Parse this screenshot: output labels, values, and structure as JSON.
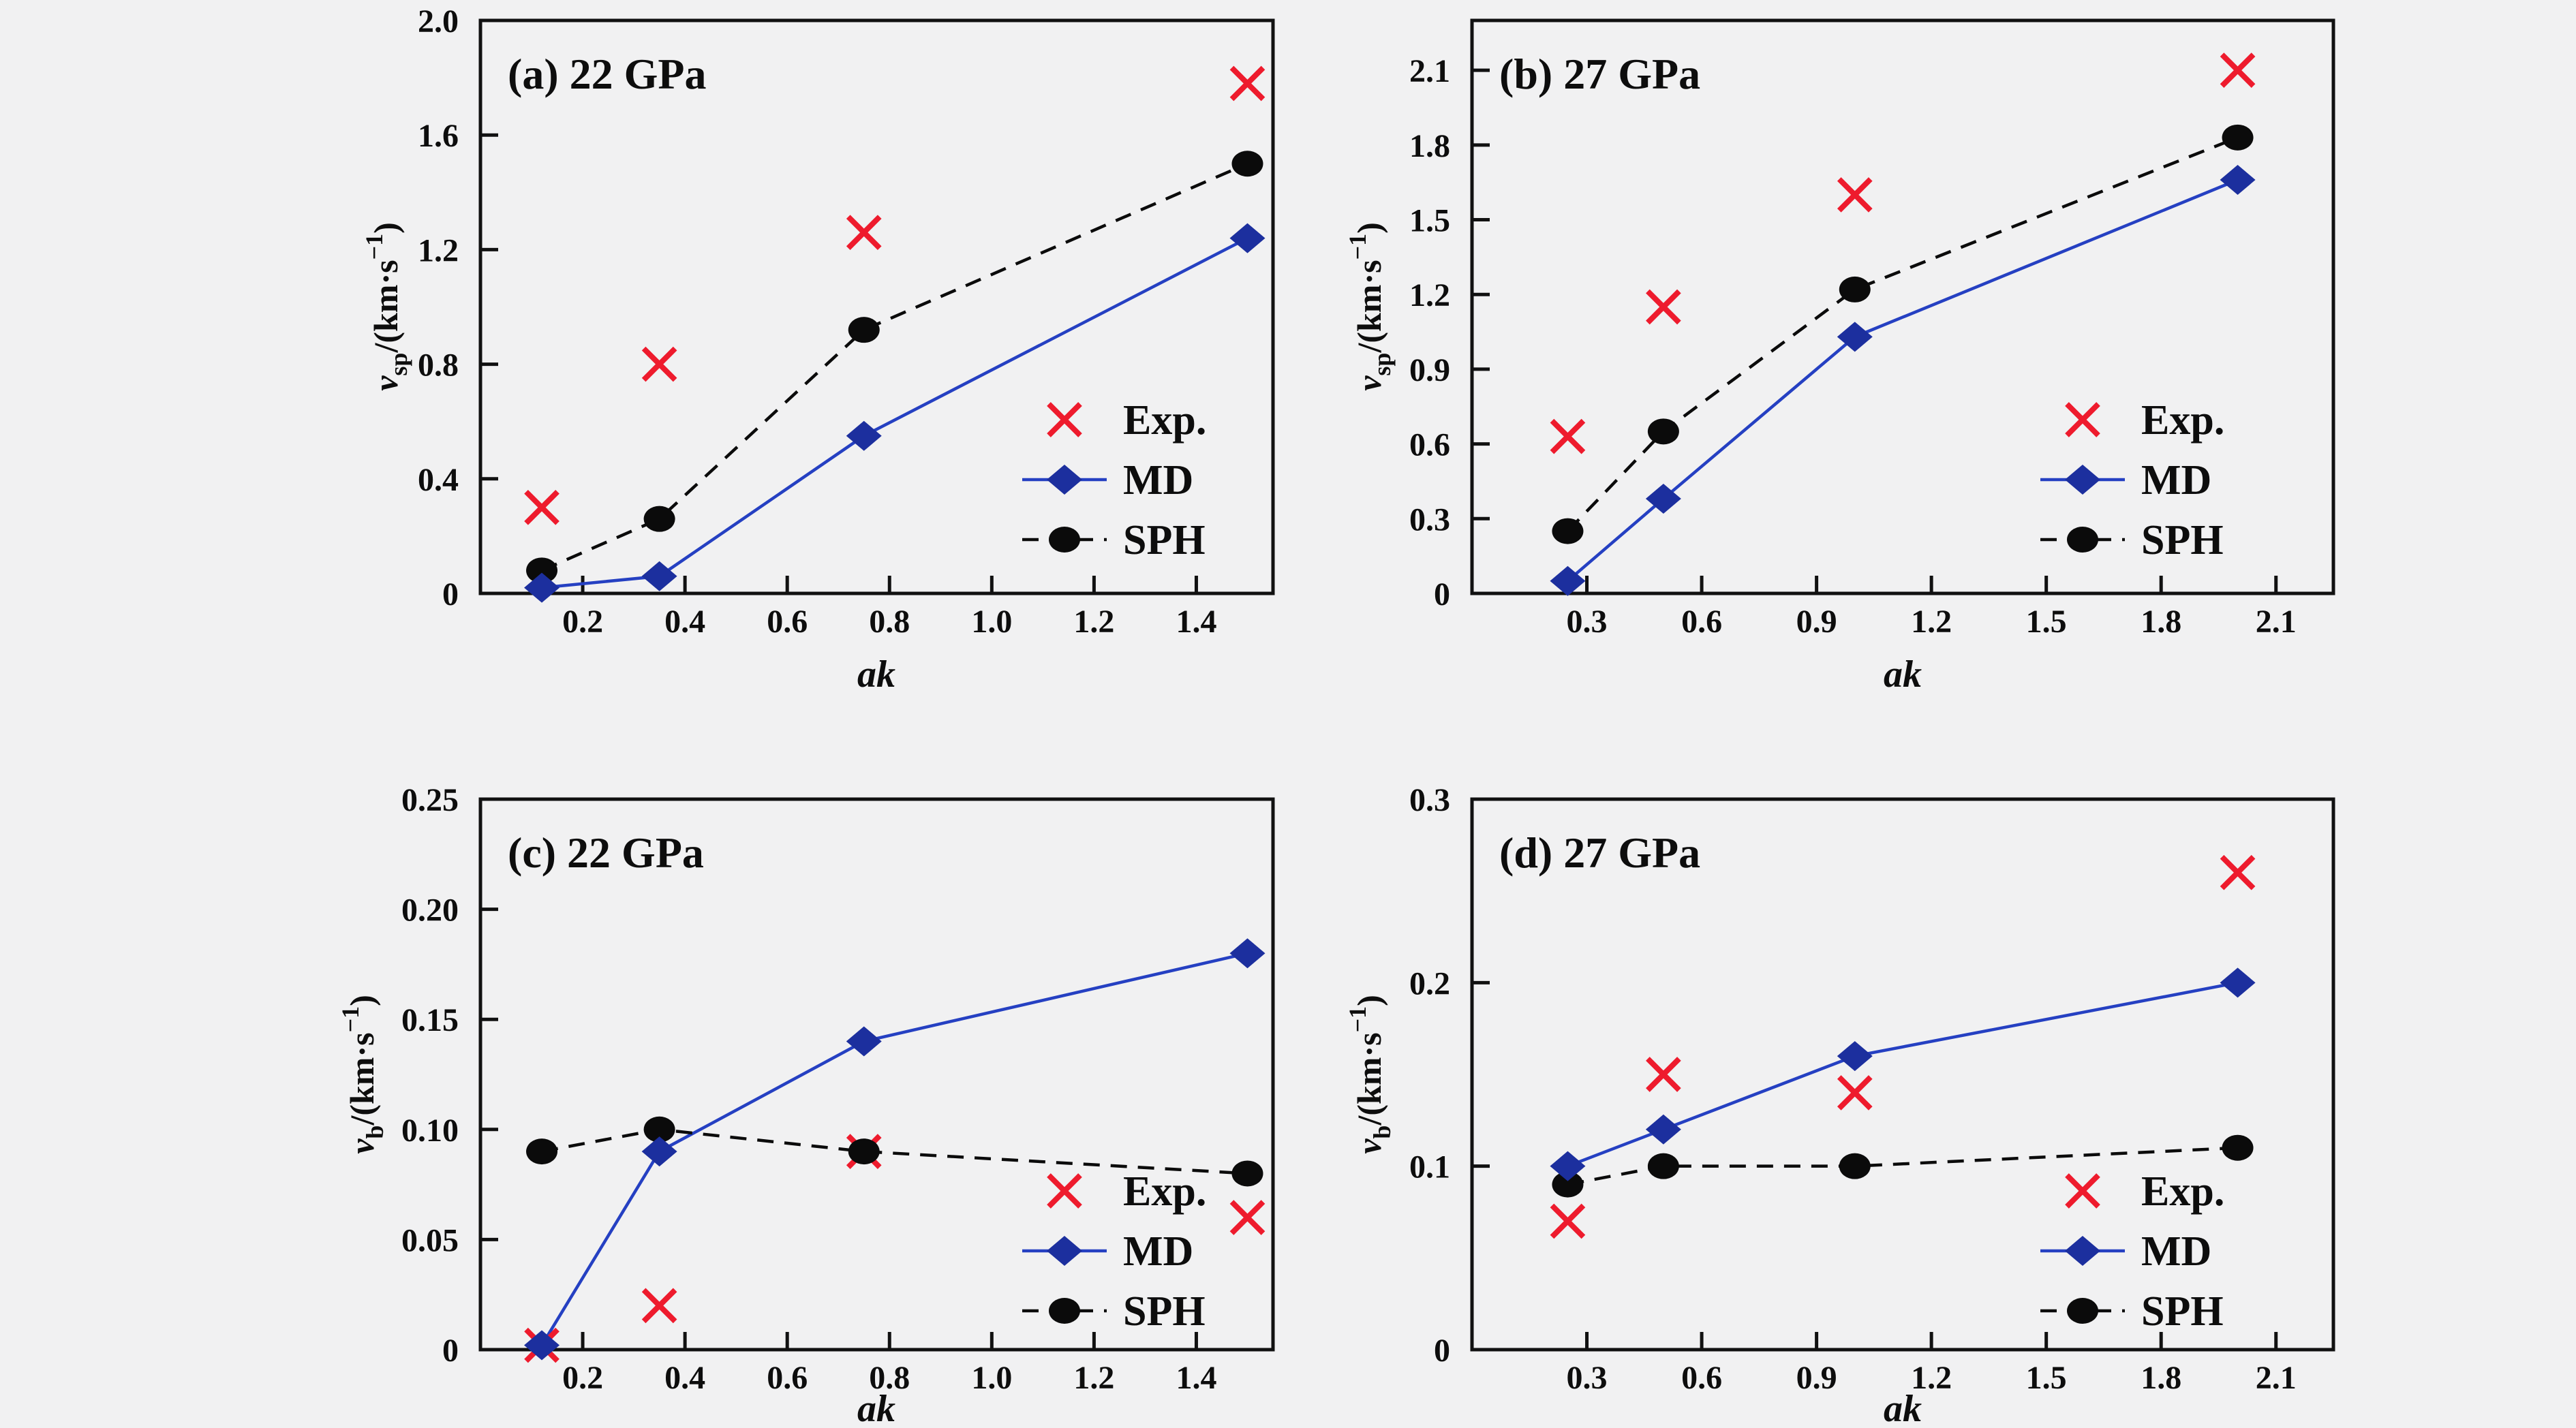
{
  "figure": {
    "background": "#f1f1f2"
  },
  "colors": {
    "axis": "#111111",
    "text": "#0d0d0d",
    "exp": "#ee1b2d",
    "md_marker": "#1c2f9e",
    "md_line": "#2540c2",
    "sph": "#0b0b0b"
  },
  "legend_labels": [
    "Exp.",
    "MD",
    "SPH"
  ],
  "chart_data": [
    {
      "id": "a",
      "type": "line",
      "title": "(a) 22 GPa",
      "xlabel": "ak",
      "ylabel": {
        "var": "v",
        "sub": "sp",
        "mid": "/(km·s",
        "sup": "−1",
        "end": ")"
      },
      "xlim": [
        0,
        1.55
      ],
      "ylim": [
        0,
        2.0
      ],
      "xticks": [
        {
          "v": 0.2,
          "t": "0.2"
        },
        {
          "v": 0.4,
          "t": "0.4"
        },
        {
          "v": 0.6,
          "t": "0.6"
        },
        {
          "v": 0.8,
          "t": "0.8"
        },
        {
          "v": 1.0,
          "t": "1.0"
        },
        {
          "v": 1.2,
          "t": "1.2"
        },
        {
          "v": 1.4,
          "t": "1.4"
        }
      ],
      "yticks": [
        {
          "v": 0,
          "t": "0"
        },
        {
          "v": 0.4,
          "t": "0.4"
        },
        {
          "v": 0.8,
          "t": "0.8"
        },
        {
          "v": 1.2,
          "t": "1.2"
        },
        {
          "v": 1.6,
          "t": "1.6"
        },
        {
          "v": 2.0,
          "t": "2.0"
        }
      ],
      "x": [
        0.12,
        0.35,
        0.75,
        1.5
      ],
      "series": [
        {
          "name": "Exp.",
          "key": "exp",
          "values": [
            0.3,
            0.8,
            1.26,
            1.78
          ]
        },
        {
          "name": "MD",
          "key": "md",
          "values": [
            0.02,
            0.06,
            0.55,
            1.24
          ]
        },
        {
          "name": "SPH",
          "key": "sph",
          "values": [
            0.08,
            0.26,
            0.92,
            1.5
          ]
        }
      ],
      "legend_position": "right-middle",
      "grid": false
    },
    {
      "id": "b",
      "type": "line",
      "title": "(b) 27 GPa",
      "xlabel": "ak",
      "ylabel": {
        "var": "v",
        "sub": "sp",
        "mid": "/(km·s",
        "sup": "−1",
        "end": ")"
      },
      "xlim": [
        0,
        2.25
      ],
      "ylim": [
        0,
        2.3
      ],
      "xticks": [
        {
          "v": 0.3,
          "t": "0.3"
        },
        {
          "v": 0.6,
          "t": "0.6"
        },
        {
          "v": 0.9,
          "t": "0.9"
        },
        {
          "v": 1.2,
          "t": "1.2"
        },
        {
          "v": 1.5,
          "t": "1.5"
        },
        {
          "v": 1.8,
          "t": "1.8"
        },
        {
          "v": 2.1,
          "t": "2.1"
        }
      ],
      "yticks": [
        {
          "v": 0,
          "t": "0"
        },
        {
          "v": 0.3,
          "t": "0.3"
        },
        {
          "v": 0.6,
          "t": "0.6"
        },
        {
          "v": 0.9,
          "t": "0.9"
        },
        {
          "v": 1.2,
          "t": "1.2"
        },
        {
          "v": 1.5,
          "t": "1.5"
        },
        {
          "v": 1.8,
          "t": "1.8"
        },
        {
          "v": 2.1,
          "t": "2.1"
        }
      ],
      "x": [
        0.25,
        0.5,
        1.0,
        2.0
      ],
      "series": [
        {
          "name": "Exp.",
          "key": "exp",
          "values": [
            0.63,
            1.15,
            1.6,
            2.1
          ]
        },
        {
          "name": "MD",
          "key": "md",
          "values": [
            0.05,
            0.38,
            1.03,
            1.66
          ]
        },
        {
          "name": "SPH",
          "key": "sph",
          "values": [
            0.25,
            0.65,
            1.22,
            1.83
          ]
        }
      ],
      "legend_position": "right-middle",
      "grid": false
    },
    {
      "id": "c",
      "type": "line",
      "title": "(c) 22 GPa",
      "xlabel": "ak",
      "ylabel": {
        "var": "v",
        "sub": "b",
        "mid": "/(km·s",
        "sup": "−1",
        "end": ")"
      },
      "xlim": [
        0,
        1.55
      ],
      "ylim": [
        0,
        0.25
      ],
      "xticks": [
        {
          "v": 0.2,
          "t": "0.2"
        },
        {
          "v": 0.4,
          "t": "0.4"
        },
        {
          "v": 0.6,
          "t": "0.6"
        },
        {
          "v": 0.8,
          "t": "0.8"
        },
        {
          "v": 1.0,
          "t": "1.0"
        },
        {
          "v": 1.2,
          "t": "1.2"
        },
        {
          "v": 1.4,
          "t": "1.4"
        }
      ],
      "yticks": [
        {
          "v": 0,
          "t": "0"
        },
        {
          "v": 0.05,
          "t": "0.05"
        },
        {
          "v": 0.1,
          "t": "0.10"
        },
        {
          "v": 0.15,
          "t": "0.15"
        },
        {
          "v": 0.2,
          "t": "0.20"
        },
        {
          "v": 0.25,
          "t": "0.25"
        }
      ],
      "x": [
        0.12,
        0.35,
        0.75,
        1.5
      ],
      "series": [
        {
          "name": "Exp.",
          "key": "exp",
          "values": [
            0.002,
            0.02,
            0.09,
            0.06
          ]
        },
        {
          "name": "MD",
          "key": "md",
          "values": [
            0.002,
            0.09,
            0.14,
            0.18
          ]
        },
        {
          "name": "SPH",
          "key": "sph",
          "values": [
            0.09,
            0.1,
            0.09,
            0.08
          ]
        }
      ],
      "legend_position": "right-lower",
      "grid": false
    },
    {
      "id": "d",
      "type": "line",
      "title": "(d) 27 GPa",
      "xlabel": "ak",
      "ylabel": {
        "var": "v",
        "sub": "b",
        "mid": "/(km·s",
        "sup": "−1",
        "end": ")"
      },
      "xlim": [
        0,
        2.25
      ],
      "ylim": [
        0,
        0.3
      ],
      "xticks": [
        {
          "v": 0.3,
          "t": "0.3"
        },
        {
          "v": 0.6,
          "t": "0.6"
        },
        {
          "v": 0.9,
          "t": "0.9"
        },
        {
          "v": 1.2,
          "t": "1.2"
        },
        {
          "v": 1.5,
          "t": "1.5"
        },
        {
          "v": 1.8,
          "t": "1.8"
        },
        {
          "v": 2.1,
          "t": "2.1"
        }
      ],
      "yticks": [
        {
          "v": 0,
          "t": "0"
        },
        {
          "v": 0.1,
          "t": "0.1"
        },
        {
          "v": 0.2,
          "t": "0.2"
        },
        {
          "v": 0.3,
          "t": "0.3"
        }
      ],
      "x": [
        0.25,
        0.5,
        1.0,
        2.0
      ],
      "series": [
        {
          "name": "Exp.",
          "key": "exp",
          "values": [
            0.07,
            0.15,
            0.14,
            0.26
          ]
        },
        {
          "name": "MD",
          "key": "md",
          "values": [
            0.1,
            0.12,
            0.16,
            0.2
          ]
        },
        {
          "name": "SPH",
          "key": "sph",
          "values": [
            0.09,
            0.1,
            0.1,
            0.11
          ]
        }
      ],
      "legend_position": "right-lower",
      "grid": false
    }
  ]
}
